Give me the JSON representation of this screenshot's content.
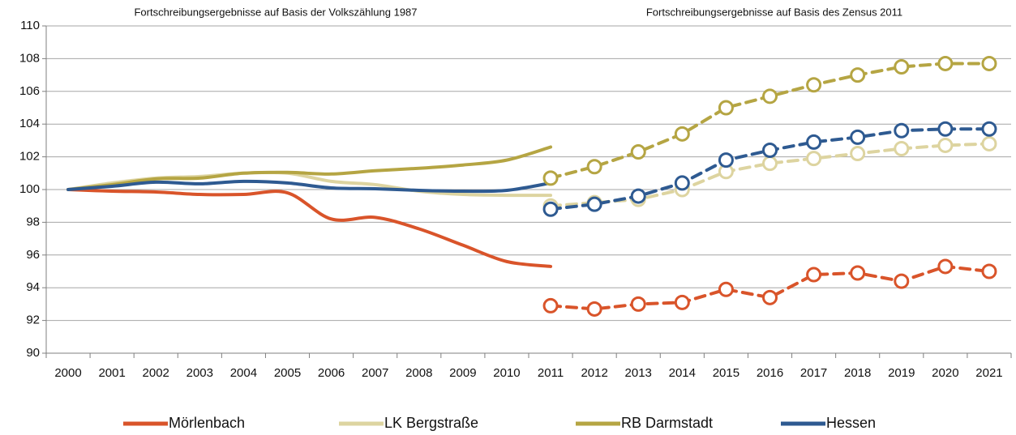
{
  "chart_data": {
    "type": "line",
    "annotations": [
      "Fortschreibungsergebnisse auf Basis der Volkszählung 1987",
      "Fortschreibungsergebnisse auf Basis des Zensus 2011"
    ],
    "categories": [
      "2000",
      "2001",
      "2002",
      "2003",
      "2004",
      "2005",
      "2006",
      "2007",
      "2008",
      "2009",
      "2010",
      "2011",
      "2012",
      "2013",
      "2014",
      "2015",
      "2016",
      "2017",
      "2018",
      "2019",
      "2020",
      "2021"
    ],
    "series": [
      {
        "name": "Mörlenbach",
        "color": "#d9542a",
        "values": [
          100,
          99.9,
          99.85,
          99.7,
          99.7,
          99.8,
          98.2,
          98.3,
          97.6,
          96.6,
          95.6,
          95.3,
          null,
          null,
          null,
          null,
          null,
          null,
          null,
          null,
          null,
          null
        ],
        "zensus_values": [
          null,
          null,
          null,
          null,
          null,
          null,
          null,
          null,
          null,
          null,
          null,
          92.9,
          92.7,
          93.0,
          93.1,
          93.9,
          93.4,
          94.8,
          94.9,
          94.4,
          95.3,
          95.0
        ]
      },
      {
        "name": "LK Bergstraße",
        "color": "#ddd4a0",
        "values": [
          100,
          100.4,
          100.7,
          100.8,
          101.0,
          101.0,
          100.5,
          100.3,
          99.9,
          99.7,
          99.65,
          99.65,
          null,
          null,
          null,
          null,
          null,
          null,
          null,
          null,
          null,
          null
        ],
        "zensus_values": [
          null,
          null,
          null,
          null,
          null,
          null,
          null,
          null,
          null,
          null,
          null,
          99.0,
          99.2,
          99.4,
          100.0,
          101.1,
          101.6,
          101.9,
          102.2,
          102.5,
          102.7,
          102.8
        ]
      },
      {
        "name": "RB Darmstadt",
        "color": "#b5a543",
        "values": [
          100,
          100.3,
          100.65,
          100.7,
          101.0,
          101.05,
          100.95,
          101.15,
          101.3,
          101.5,
          101.8,
          102.6,
          null,
          null,
          null,
          null,
          null,
          null,
          null,
          null,
          null,
          null
        ],
        "zensus_values": [
          null,
          null,
          null,
          null,
          null,
          null,
          null,
          null,
          null,
          null,
          null,
          100.7,
          101.4,
          102.3,
          103.4,
          105.0,
          105.7,
          106.4,
          107.0,
          107.5,
          107.7,
          107.7
        ]
      },
      {
        "name": "Hessen",
        "color": "#2e5a91",
        "values": [
          100,
          100.2,
          100.45,
          100.35,
          100.5,
          100.4,
          100.1,
          100.05,
          99.95,
          99.9,
          99.95,
          100.4,
          null,
          null,
          null,
          null,
          null,
          null,
          null,
          null,
          null,
          null
        ],
        "zensus_values": [
          null,
          null,
          null,
          null,
          null,
          null,
          null,
          null,
          null,
          null,
          null,
          98.8,
          99.1,
          99.6,
          100.4,
          101.8,
          102.4,
          102.9,
          103.2,
          103.6,
          103.7,
          103.7
        ]
      }
    ],
    "ylim": [
      90,
      110
    ],
    "yticks": [
      90,
      92,
      94,
      96,
      98,
      100,
      102,
      104,
      106,
      108,
      110
    ],
    "grid": true,
    "legend": "bottom"
  }
}
